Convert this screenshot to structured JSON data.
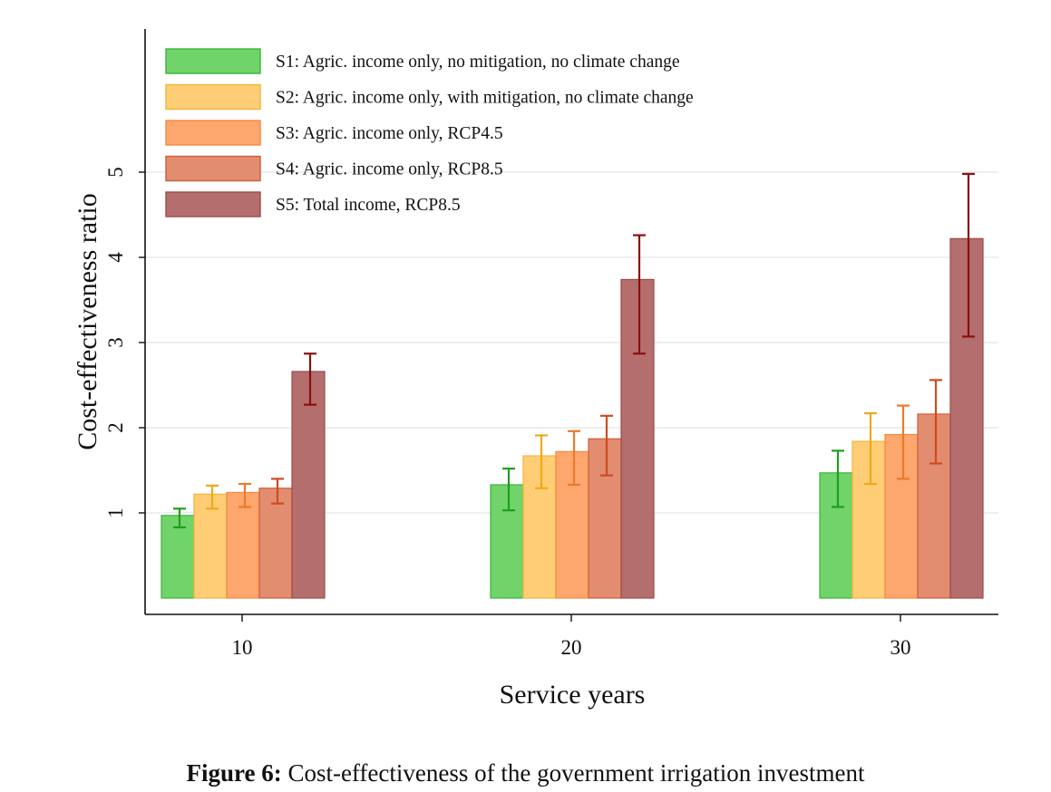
{
  "chart_data": {
    "type": "bar",
    "xlabel": "Service years",
    "ylabel": "Cost-effectiveness ratio",
    "categories": [
      "10",
      "20",
      "30"
    ],
    "ylim": [
      0,
      5.2
    ],
    "yticks": [
      1,
      2,
      3,
      4,
      5
    ],
    "grid": true,
    "legend_position": "top-left",
    "series": [
      {
        "name": "S1: Agric. income only, no mitigation, no climate change",
        "fill": "#70d46a",
        "stroke": "#3ab53a",
        "error_color": "#1f9e1f",
        "values": [
          0.97,
          1.33,
          1.47
        ],
        "lower": [
          0.83,
          1.03,
          1.07
        ],
        "upper": [
          1.05,
          1.52,
          1.73
        ]
      },
      {
        "name": "S2: Agric. income only, with mitigation, no climate change",
        "fill": "#fecd75",
        "stroke": "#f3b43a",
        "error_color": "#f0a81a",
        "values": [
          1.22,
          1.67,
          1.84
        ],
        "lower": [
          1.05,
          1.29,
          1.34
        ],
        "upper": [
          1.32,
          1.91,
          2.17
        ]
      },
      {
        "name": "S3: Agric. income only, RCP4.5",
        "fill": "#fda66d",
        "stroke": "#f28a3e",
        "error_color": "#ec7a2a",
        "values": [
          1.24,
          1.72,
          1.92
        ],
        "lower": [
          1.07,
          1.33,
          1.4
        ],
        "upper": [
          1.34,
          1.96,
          2.26
        ]
      },
      {
        "name": "S4: Agric. income only, RCP8.5",
        "fill": "#e28d6f",
        "stroke": "#d05c38",
        "error_color": "#d04a20",
        "values": [
          1.29,
          1.87,
          2.16
        ],
        "lower": [
          1.11,
          1.44,
          1.58
        ],
        "upper": [
          1.4,
          2.14,
          2.56
        ]
      },
      {
        "name": "S5: Total income, RCP8.5",
        "fill": "#b46e6d",
        "stroke": "#9d4a48",
        "error_color": "#8b0f0f",
        "values": [
          2.66,
          3.74,
          4.22
        ],
        "lower": [
          2.27,
          2.87,
          3.07
        ],
        "upper": [
          2.87,
          4.26,
          4.98
        ]
      }
    ]
  },
  "caption": {
    "label": "Figure 6:",
    "text": "Cost-effectiveness of the government irrigation investment"
  }
}
